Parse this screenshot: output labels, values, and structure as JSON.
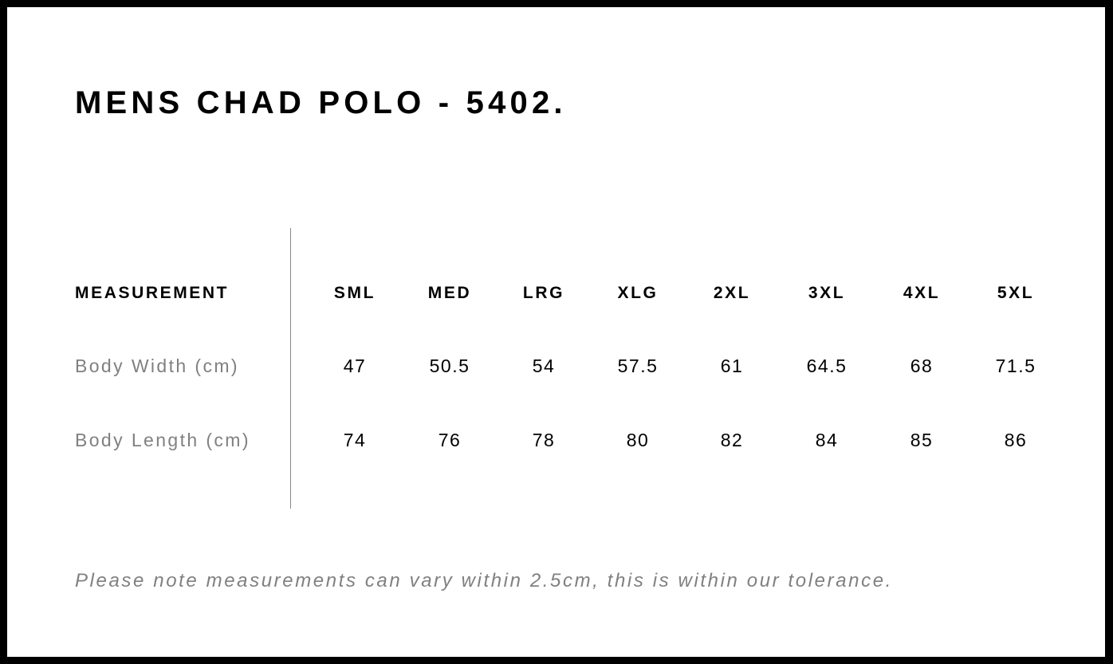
{
  "title": "MENS CHAD POLO - 5402.",
  "table": {
    "header_label": "MEASUREMENT",
    "sizes": [
      "SML",
      "MED",
      "LRG",
      "XLG",
      "2XL",
      "3XL",
      "4XL",
      "5XL"
    ],
    "rows": [
      {
        "label": "Body Width (cm)",
        "values": [
          "47",
          "50.5",
          "54",
          "57.5",
          "61",
          "64.5",
          "68",
          "71.5"
        ]
      },
      {
        "label": "Body Length (cm)",
        "values": [
          "74",
          "76",
          "78",
          "80",
          "82",
          "84",
          "85",
          "86"
        ]
      }
    ]
  },
  "note": "Please note measurements can vary within 2.5cm, this is within our tolerance.",
  "colors": {
    "frame": "#000000",
    "label_gray": "#808080"
  }
}
